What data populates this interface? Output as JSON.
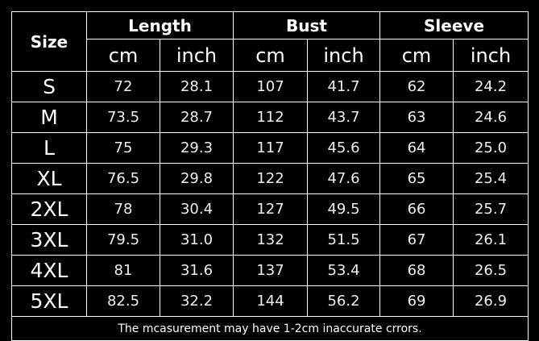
{
  "header": {
    "size": "Size",
    "groups": [
      "Length",
      "Bust",
      "Sleeve"
    ],
    "units": [
      "cm",
      "inch",
      "cm",
      "inch",
      "cm",
      "inch"
    ]
  },
  "rows": [
    [
      "S",
      "72",
      "28.1",
      "107",
      "41.7",
      "62",
      "24.2"
    ],
    [
      "M",
      "73.5",
      "28.7",
      "112",
      "43.7",
      "63",
      "24.6"
    ],
    [
      "L",
      "75",
      "29.3",
      "117",
      "45.6",
      "64",
      "25.0"
    ],
    [
      "XL",
      "76.5",
      "29.8",
      "122",
      "47.6",
      "65",
      "25.4"
    ],
    [
      "2XL",
      "78",
      "30.4",
      "127",
      "49.5",
      "66",
      "25.7"
    ],
    [
      "3XL",
      "79.5",
      "31.0",
      "132",
      "51.5",
      "67",
      "26.1"
    ],
    [
      "4XL",
      "81",
      "31.6",
      "137",
      "53.4",
      "68",
      "26.5"
    ],
    [
      "5XL",
      "82.5",
      "32.2",
      "144",
      "56.2",
      "69",
      "26.9"
    ]
  ],
  "footer": "The mcasurement may have 1-2cm inaccurate crrors."
}
